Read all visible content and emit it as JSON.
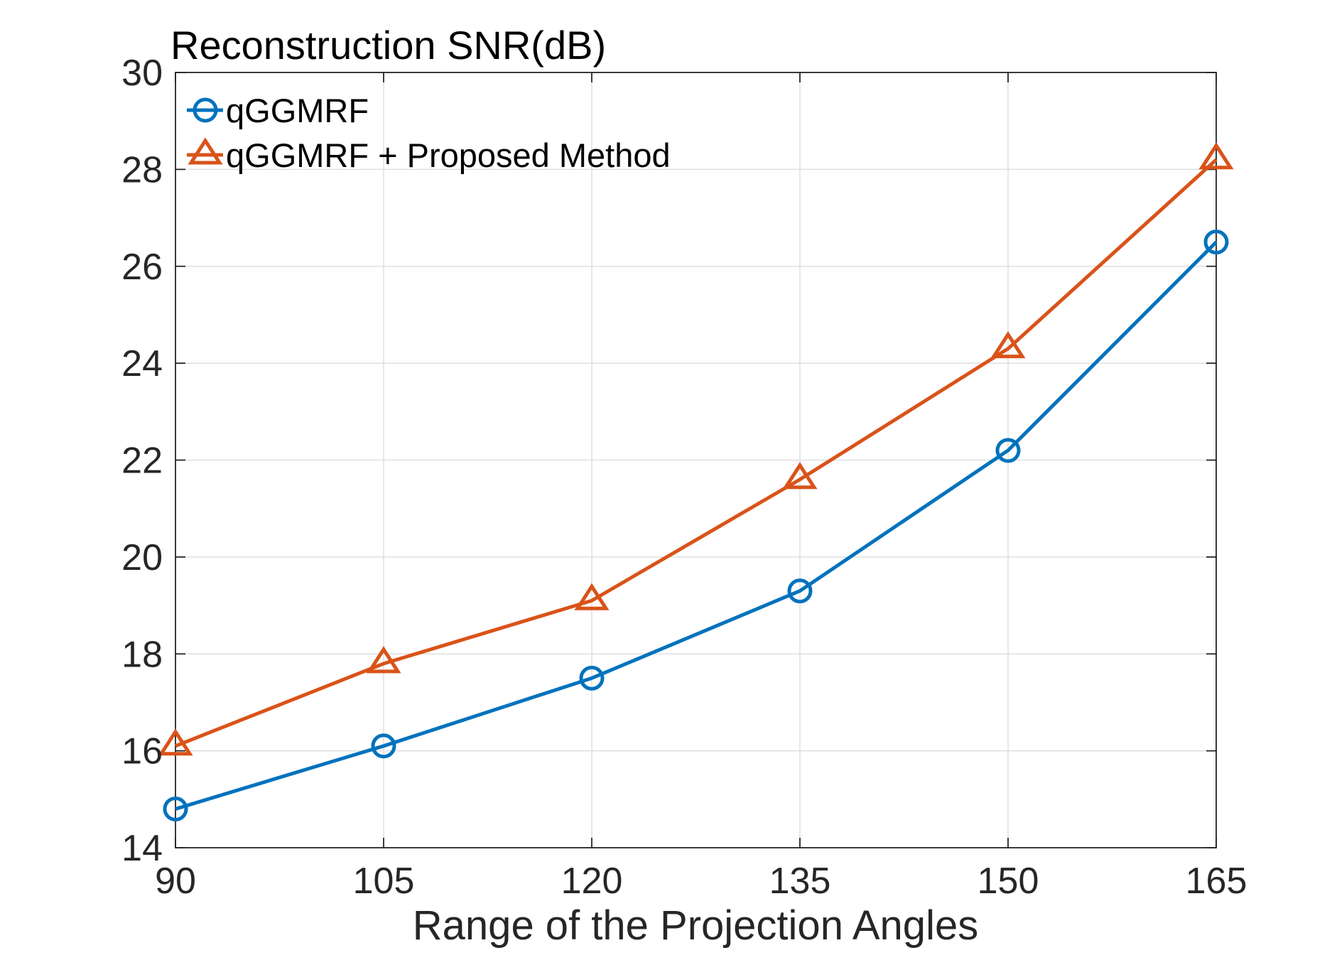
{
  "chart_data": {
    "type": "line",
    "title": "Reconstruction SNR(dB)",
    "xlabel": "Range of the Projection Angles",
    "ylabel": "",
    "x": [
      90,
      105,
      120,
      135,
      150,
      165
    ],
    "xticks": [
      "90",
      "105",
      "120",
      "135",
      "150",
      "165"
    ],
    "yticks": [
      "14",
      "16",
      "18",
      "20",
      "22",
      "24",
      "26",
      "28",
      "30"
    ],
    "xlim": [
      90,
      165
    ],
    "ylim": [
      14,
      30
    ],
    "grid": true,
    "legend_position": "top-left",
    "series": [
      {
        "name": "qGGMRF",
        "marker": "circle",
        "color": "#0072BD",
        "values": [
          14.8,
          16.1,
          17.5,
          19.3,
          22.2,
          26.5
        ]
      },
      {
        "name": "qGGMRF + Proposed Method",
        "marker": "triangle",
        "color": "#D95319",
        "values": [
          16.1,
          17.8,
          19.1,
          21.6,
          24.3,
          28.2
        ]
      }
    ]
  }
}
